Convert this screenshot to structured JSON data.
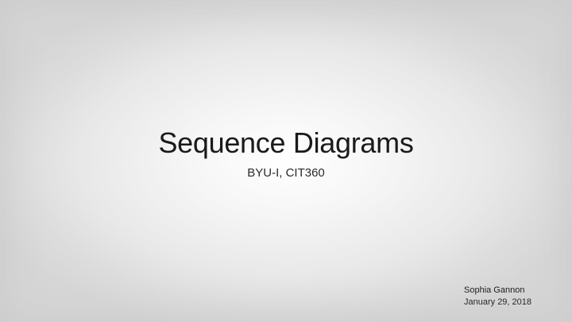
{
  "slide": {
    "title": "Sequence Diagrams",
    "subtitle": "BYU-I, CIT360",
    "author": "Sophia Gannon",
    "date": "January 29, 2018"
  }
}
